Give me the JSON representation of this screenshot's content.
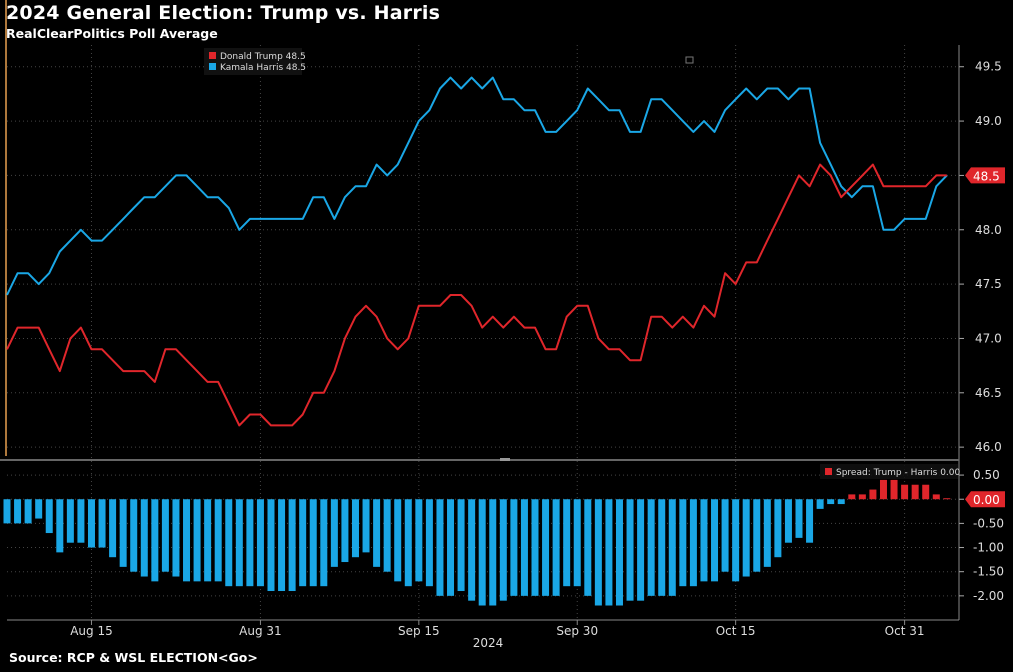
{
  "title": "2024 General Election: Trump vs. Harris",
  "subtitle": "RealClearPolitics Poll Average",
  "source": "Source: RCP & WSL ELECTION<Go>",
  "colors": {
    "trump": "#e0262b",
    "harris": "#1aa7e6",
    "background": "#000000",
    "grid": "#444444",
    "accent_line": "#e8a050"
  },
  "chart_data": [
    {
      "type": "line",
      "title": "2024 General Election: Trump vs. Harris",
      "subtitle": "RealClearPolitics Poll Average",
      "ylim": [
        45.9,
        49.7
      ],
      "yticks": [
        "46.0",
        "46.5",
        "47.0",
        "47.5",
        "48.0",
        "48.5",
        "49.0",
        "49.5"
      ],
      "last_value_label": "48.5",
      "grid": true,
      "legend_placement": "top-left",
      "legend": [
        "Donald Trump 48.5",
        "Kamala Harris 48.5"
      ],
      "x": [
        "Aug 7",
        "Aug 8",
        "Aug 9",
        "Aug 10",
        "Aug 11",
        "Aug 12",
        "Aug 13",
        "Aug 14",
        "Aug 15",
        "Aug 16",
        "Aug 17",
        "Aug 18",
        "Aug 19",
        "Aug 20",
        "Aug 21",
        "Aug 22",
        "Aug 23",
        "Aug 24",
        "Aug 25",
        "Aug 26",
        "Aug 27",
        "Aug 28",
        "Aug 29",
        "Aug 30",
        "Aug 31",
        "Sep 1",
        "Sep 2",
        "Sep 3",
        "Sep 4",
        "Sep 5",
        "Sep 6",
        "Sep 7",
        "Sep 8",
        "Sep 9",
        "Sep 10",
        "Sep 11",
        "Sep 12",
        "Sep 13",
        "Sep 14",
        "Sep 15",
        "Sep 16",
        "Sep 17",
        "Sep 18",
        "Sep 19",
        "Sep 20",
        "Sep 21",
        "Sep 22",
        "Sep 23",
        "Sep 24",
        "Sep 25",
        "Sep 26",
        "Sep 27",
        "Sep 28",
        "Sep 29",
        "Sep 30",
        "Oct 1",
        "Oct 2",
        "Oct 3",
        "Oct 4",
        "Oct 5",
        "Oct 6",
        "Oct 7",
        "Oct 8",
        "Oct 9",
        "Oct 10",
        "Oct 11",
        "Oct 12",
        "Oct 13",
        "Oct 14",
        "Oct 15",
        "Oct 16",
        "Oct 17",
        "Oct 18",
        "Oct 19",
        "Oct 20",
        "Oct 21",
        "Oct 22",
        "Oct 23",
        "Oct 24",
        "Oct 25",
        "Oct 26",
        "Oct 27",
        "Oct 28",
        "Oct 29",
        "Oct 30",
        "Oct 31",
        "Nov 1",
        "Nov 2",
        "Nov 3",
        "Nov 4"
      ],
      "xticks": [
        "Aug 15",
        "Aug 31",
        "Sep 15",
        "Sep 30",
        "Oct 15",
        "Oct 31"
      ],
      "xlabel_year": "2024",
      "series": [
        {
          "name": "Donald Trump",
          "color": "#e0262b",
          "values": [
            46.9,
            47.1,
            47.1,
            47.1,
            46.9,
            46.7,
            47.0,
            47.1,
            46.9,
            46.9,
            46.8,
            46.7,
            46.7,
            46.7,
            46.6,
            46.9,
            46.9,
            46.8,
            46.7,
            46.6,
            46.6,
            46.4,
            46.2,
            46.3,
            46.3,
            46.2,
            46.2,
            46.2,
            46.3,
            46.5,
            46.5,
            46.7,
            47.0,
            47.2,
            47.3,
            47.2,
            47.0,
            46.9,
            47.0,
            47.3,
            47.3,
            47.3,
            47.4,
            47.4,
            47.3,
            47.1,
            47.2,
            47.1,
            47.2,
            47.1,
            47.1,
            46.9,
            46.9,
            47.2,
            47.3,
            47.3,
            47.0,
            46.9,
            46.9,
            46.8,
            46.8,
            47.2,
            47.2,
            47.1,
            47.2,
            47.1,
            47.3,
            47.2,
            47.6,
            47.5,
            47.7,
            47.7,
            47.9,
            48.1,
            48.3,
            48.5,
            48.4,
            48.6,
            48.5,
            48.3,
            48.4,
            48.5,
            48.6,
            48.4,
            48.4,
            48.4,
            48.4,
            48.4,
            48.5,
            48.5
          ]
        },
        {
          "name": "Kamala Harris",
          "color": "#1aa7e6",
          "values": [
            47.4,
            47.6,
            47.6,
            47.5,
            47.6,
            47.8,
            47.9,
            48.0,
            47.9,
            47.9,
            48.0,
            48.1,
            48.2,
            48.3,
            48.3,
            48.4,
            48.5,
            48.5,
            48.4,
            48.3,
            48.3,
            48.2,
            48.0,
            48.1,
            48.1,
            48.1,
            48.1,
            48.1,
            48.1,
            48.3,
            48.3,
            48.1,
            48.3,
            48.4,
            48.4,
            48.6,
            48.5,
            48.6,
            48.8,
            49.0,
            49.1,
            49.3,
            49.4,
            49.3,
            49.4,
            49.3,
            49.4,
            49.2,
            49.2,
            49.1,
            49.1,
            48.9,
            48.9,
            49.0,
            49.1,
            49.3,
            49.2,
            49.1,
            49.1,
            48.9,
            48.9,
            49.2,
            49.2,
            49.1,
            49.0,
            48.9,
            49.0,
            48.9,
            49.1,
            49.2,
            49.3,
            49.2,
            49.3,
            49.3,
            49.2,
            49.3,
            49.3,
            48.8,
            48.6,
            48.4,
            48.3,
            48.4,
            48.4,
            48.0,
            48.0,
            48.1,
            48.1,
            48.1,
            48.4,
            48.5
          ]
        }
      ]
    },
    {
      "type": "bar",
      "ylim": [
        -2.5,
        0.75
      ],
      "yticks": [
        "0.50",
        "0.00",
        "-0.50",
        "-1.00",
        "-1.50",
        "-2.00"
      ],
      "last_value_label": "0.00",
      "legend": [
        "Spread: Trump - Harris 0.00"
      ],
      "positive_color": "#e0262b",
      "negative_color": "#1aa7e6",
      "series": [
        {
          "name": "Spread: Trump - Harris",
          "values": [
            -0.5,
            -0.5,
            -0.5,
            -0.4,
            -0.7,
            -1.1,
            -0.9,
            -0.9,
            -1.0,
            -1.0,
            -1.2,
            -1.4,
            -1.5,
            -1.6,
            -1.7,
            -1.5,
            -1.6,
            -1.7,
            -1.7,
            -1.7,
            -1.7,
            -1.8,
            -1.8,
            -1.8,
            -1.8,
            -1.9,
            -1.9,
            -1.9,
            -1.8,
            -1.8,
            -1.8,
            -1.4,
            -1.3,
            -1.2,
            -1.1,
            -1.4,
            -1.5,
            -1.7,
            -1.8,
            -1.7,
            -1.8,
            -2.0,
            -2.0,
            -1.9,
            -2.1,
            -2.2,
            -2.2,
            -2.1,
            -2.0,
            -2.0,
            -2.0,
            -2.0,
            -2.0,
            -1.8,
            -1.8,
            -2.0,
            -2.2,
            -2.2,
            -2.2,
            -2.1,
            -2.1,
            -2.0,
            -2.0,
            -2.0,
            -1.8,
            -1.8,
            -1.7,
            -1.7,
            -1.5,
            -1.7,
            -1.6,
            -1.5,
            -1.4,
            -1.2,
            -0.9,
            -0.8,
            -0.9,
            -0.2,
            -0.1,
            -0.1,
            0.1,
            0.1,
            0.2,
            0.4,
            0.4,
            0.3,
            0.3,
            0.3,
            0.1,
            0.0
          ]
        }
      ]
    }
  ]
}
